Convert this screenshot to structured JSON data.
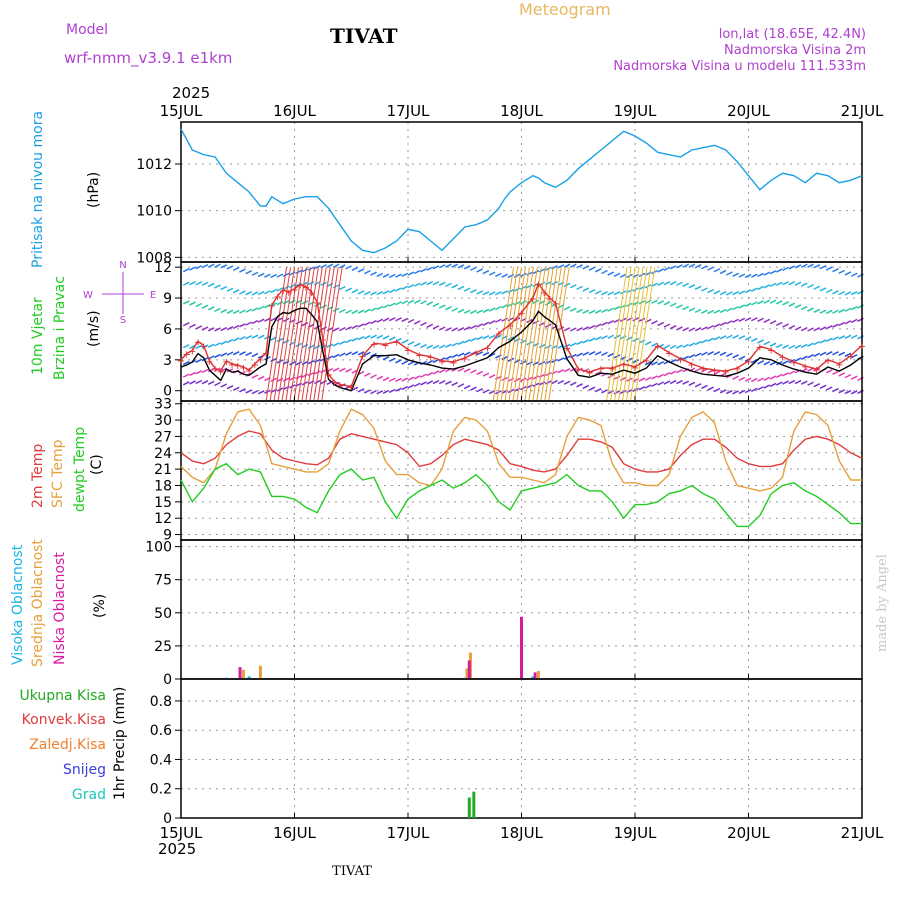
{
  "header": {
    "model_label": "Model",
    "model_name": "wrf-nmm_v3.9.1  e1km",
    "station": "TIVAT",
    "product": "Meteogram",
    "coords": "lon,lat (18.65E, 42.4N)",
    "elevation": "Nadmorska Visina 2m",
    "model_elevation": "Nadmorska Visina u modelu 111.533m",
    "year_top": "2025",
    "year_bottom": "2025",
    "footer_station": "TIVAT",
    "credit": "made by Angel"
  },
  "colors": {
    "pressure": "#1aa0e6",
    "wind_black": "#000000",
    "wind_red": "#e03030",
    "t2m": "#e03c3c",
    "tsfc": "#e6a03c",
    "dewpt": "#22cc22",
    "high_cloud": "#1ab4e6",
    "mid_cloud": "#e6a03c",
    "low_cloud": "#d81aa0",
    "rain_total": "#22aa22",
    "rain_conv": "#e03c3c",
    "freezing": "#f08030",
    "snow": "#3c3ce6",
    "hail": "#1ac8b4",
    "purple_text": "#b040d0",
    "header_orange": "#e8b860"
  },
  "chart_data": [
    {
      "type": "line",
      "panel": "pressure",
      "ylabel_lines": [
        "Pritisak na nivou mora",
        "(hPa)"
      ],
      "yticks": [
        1008,
        1010,
        1012
      ],
      "ylim": [
        1007.8,
        1013.8
      ],
      "xlim": [
        0,
        6
      ],
      "x_ticks": [
        "15JUL",
        "16JUL",
        "17JUL",
        "18JUL",
        "19JUL",
        "20JUL",
        "21JUL"
      ],
      "grid": true,
      "series": [
        {
          "name": "",
          "color_key": "pressure",
          "x": [
            0,
            0.1,
            0.2,
            0.3,
            0.4,
            0.5,
            0.6,
            0.7,
            0.75,
            0.8,
            0.9,
            1.0,
            1.1,
            1.2,
            1.3,
            1.4,
            1.5,
            1.55,
            1.6,
            1.7,
            1.8,
            1.9,
            2.0,
            2.1,
            2.2,
            2.3,
            2.4,
            2.5,
            2.6,
            2.7,
            2.8,
            2.85,
            2.9,
            3.0,
            3.1,
            3.15,
            3.2,
            3.3,
            3.4,
            3.5,
            3.6,
            3.7,
            3.8,
            3.9,
            4.0,
            4.1,
            4.2,
            4.3,
            4.4,
            4.5,
            4.6,
            4.7,
            4.8,
            4.9,
            5.0,
            5.1,
            5.2,
            5.3,
            5.4,
            5.5,
            5.6,
            5.7,
            5.8,
            5.9,
            6.0
          ],
          "y": [
            1013.5,
            1012.6,
            1012.4,
            1012.3,
            1011.6,
            1011.2,
            1010.8,
            1010.2,
            1010.2,
            1010.6,
            1010.3,
            1010.5,
            1010.6,
            1010.6,
            1010.1,
            1009.4,
            1008.7,
            1008.5,
            1008.3,
            1008.2,
            1008.4,
            1008.7,
            1009.2,
            1009.1,
            1008.7,
            1008.3,
            1008.8,
            1009.3,
            1009.4,
            1009.6,
            1010.1,
            1010.5,
            1010.8,
            1011.2,
            1011.5,
            1011.4,
            1011.2,
            1011.0,
            1011.3,
            1011.8,
            1012.2,
            1012.6,
            1013.0,
            1013.4,
            1013.2,
            1012.9,
            1012.5,
            1012.4,
            1012.3,
            1012.6,
            1012.7,
            1012.8,
            1012.6,
            1012.1,
            1011.5,
            1010.9,
            1011.3,
            1011.6,
            1011.5,
            1011.2,
            1011.6,
            1011.5,
            1011.2,
            1011.3,
            1011.5
          ]
        }
      ]
    },
    {
      "type": "line",
      "panel": "wind",
      "ylabel_lines": [
        "10m Vjetar",
        "Brzina i Pravac",
        "(m/s)"
      ],
      "compass": {
        "north": "N",
        "south": "S",
        "west": "W",
        "east": "E"
      },
      "yticks": [
        0,
        3,
        6,
        9,
        12
      ],
      "ylim": [
        -1,
        12.5
      ],
      "xlim": [
        0,
        6
      ],
      "grid": true,
      "series": [
        {
          "name": "",
          "color_key": "wind_black",
          "x": [
            0,
            0.05,
            0.1,
            0.15,
            0.2,
            0.25,
            0.3,
            0.35,
            0.4,
            0.45,
            0.5,
            0.55,
            0.6,
            0.65,
            0.7,
            0.75,
            0.8,
            0.85,
            0.9,
            0.95,
            1.0,
            1.05,
            1.1,
            1.15,
            1.2,
            1.25,
            1.3,
            1.35,
            1.4,
            1.5,
            1.6,
            1.7,
            1.8,
            1.9,
            2.0,
            2.1,
            2.2,
            2.3,
            2.4,
            2.5,
            2.6,
            2.7,
            2.8,
            2.9,
            3.0,
            3.1,
            3.15,
            3.2,
            3.25,
            3.3,
            3.4,
            3.5,
            3.6,
            3.7,
            3.8,
            3.9,
            4.0,
            4.1,
            4.2,
            4.3,
            4.4,
            4.5,
            4.6,
            4.7,
            4.8,
            4.9,
            5.0,
            5.1,
            5.2,
            5.3,
            5.4,
            5.5,
            5.6,
            5.7,
            5.8,
            5.9,
            6.0
          ],
          "y": [
            2.3,
            2.5,
            2.8,
            3.6,
            3.2,
            2.0,
            1.5,
            1.0,
            2.1,
            1.8,
            1.9,
            1.6,
            1.5,
            1.9,
            2.3,
            2.6,
            6.2,
            7.2,
            7.6,
            7.5,
            7.8,
            8.0,
            8.0,
            7.4,
            6.7,
            3.8,
            1.1,
            0.6,
            0.3,
            0.0,
            2.6,
            3.4,
            3.4,
            3.5,
            3.0,
            2.7,
            2.5,
            2.2,
            2.1,
            2.4,
            2.8,
            3.2,
            4.2,
            4.8,
            5.7,
            6.8,
            7.7,
            7.2,
            6.8,
            6.4,
            3.1,
            1.5,
            1.3,
            1.7,
            1.6,
            2.0,
            1.7,
            2.2,
            3.4,
            2.8,
            2.3,
            1.9,
            1.6,
            1.5,
            1.4,
            1.7,
            2.2,
            3.2,
            3.0,
            2.5,
            2.1,
            1.8,
            1.6,
            2.3,
            1.9,
            2.5,
            3.3
          ]
        },
        {
          "name": "",
          "color_key": "wind_red",
          "x": [
            0,
            0.05,
            0.1,
            0.15,
            0.2,
            0.25,
            0.3,
            0.35,
            0.4,
            0.45,
            0.5,
            0.55,
            0.6,
            0.65,
            0.7,
            0.75,
            0.8,
            0.85,
            0.9,
            0.95,
            1.0,
            1.05,
            1.1,
            1.15,
            1.2,
            1.25,
            1.3,
            1.35,
            1.4,
            1.5,
            1.6,
            1.7,
            1.8,
            1.9,
            2.0,
            2.1,
            2.2,
            2.3,
            2.4,
            2.5,
            2.6,
            2.7,
            2.8,
            2.9,
            3.0,
            3.1,
            3.15,
            3.2,
            3.25,
            3.3,
            3.4,
            3.5,
            3.6,
            3.7,
            3.8,
            3.9,
            4.0,
            4.1,
            4.2,
            4.3,
            4.4,
            4.5,
            4.6,
            4.7,
            4.8,
            4.9,
            5.0,
            5.1,
            5.2,
            5.3,
            5.4,
            5.5,
            5.6,
            5.7,
            5.8,
            5.9,
            6.0
          ],
          "y": [
            3.0,
            3.6,
            3.9,
            4.8,
            4.4,
            2.9,
            2.2,
            1.9,
            2.9,
            2.6,
            2.5,
            2.3,
            2.0,
            2.6,
            3.1,
            3.7,
            8.3,
            9.2,
            9.8,
            9.6,
            9.9,
            10.3,
            10.1,
            9.6,
            8.6,
            5.0,
            1.6,
            0.9,
            0.6,
            0.4,
            3.4,
            4.6,
            4.5,
            4.8,
            4.0,
            3.5,
            3.3,
            2.9,
            2.8,
            3.2,
            3.7,
            4.2,
            5.6,
            6.4,
            7.6,
            9.0,
            10.4,
            9.6,
            9.0,
            8.5,
            4.2,
            2.1,
            1.8,
            2.2,
            2.2,
            2.6,
            2.3,
            3.0,
            4.4,
            3.7,
            3.1,
            2.6,
            2.2,
            2.0,
            1.9,
            2.2,
            2.9,
            4.3,
            4.0,
            3.3,
            2.8,
            2.4,
            2.1,
            3.0,
            2.6,
            3.4,
            4.4
          ]
        }
      ]
    },
    {
      "type": "line",
      "panel": "temperature",
      "ylabel_lines": [
        "2m Temp",
        "SFC Temp",
        "dewpt Temp",
        "(C)"
      ],
      "yticks": [
        9,
        12,
        15,
        18,
        21,
        24,
        27,
        30,
        33
      ],
      "ylim": [
        8,
        33.5
      ],
      "xlim": [
        0,
        6
      ],
      "grid": true,
      "series": [
        {
          "name": "2m Temp",
          "color_key": "t2m",
          "x": [
            0,
            0.1,
            0.2,
            0.3,
            0.4,
            0.5,
            0.6,
            0.7,
            0.8,
            0.9,
            1.0,
            1.1,
            1.2,
            1.3,
            1.4,
            1.5,
            1.6,
            1.7,
            1.8,
            1.9,
            2.0,
            2.1,
            2.2,
            2.3,
            2.4,
            2.5,
            2.6,
            2.7,
            2.8,
            2.9,
            3.0,
            3.1,
            3.2,
            3.3,
            3.4,
            3.5,
            3.6,
            3.7,
            3.8,
            3.9,
            4.0,
            4.1,
            4.2,
            4.3,
            4.4,
            4.5,
            4.6,
            4.7,
            4.8,
            4.9,
            5.0,
            5.1,
            5.2,
            5.3,
            5.4,
            5.5,
            5.6,
            5.7,
            5.8,
            5.9,
            6.0
          ],
          "y": [
            24.0,
            22.5,
            22.0,
            23.0,
            25.5,
            27.0,
            28.0,
            27.5,
            24.5,
            23.0,
            22.5,
            22.0,
            21.8,
            23.0,
            26.5,
            27.5,
            27.0,
            26.5,
            26.0,
            25.5,
            24.0,
            21.5,
            22.0,
            23.5,
            25.5,
            26.5,
            26.0,
            25.5,
            24.5,
            22.0,
            21.5,
            20.8,
            20.5,
            21.0,
            23.5,
            26.5,
            26.5,
            26.0,
            25.0,
            22.0,
            21.0,
            20.5,
            20.5,
            21.0,
            23.5,
            25.5,
            26.5,
            26.5,
            25.0,
            23.0,
            22.0,
            21.5,
            21.5,
            22.0,
            24.5,
            26.5,
            27.0,
            26.5,
            25.5,
            24.0,
            23.0
          ]
        },
        {
          "name": "SFC Temp",
          "color_key": "tsfc",
          "x": [
            0,
            0.1,
            0.2,
            0.3,
            0.4,
            0.5,
            0.6,
            0.7,
            0.8,
            0.9,
            1.0,
            1.1,
            1.2,
            1.3,
            1.4,
            1.5,
            1.6,
            1.7,
            1.8,
            1.9,
            2.0,
            2.1,
            2.2,
            2.3,
            2.4,
            2.5,
            2.6,
            2.7,
            2.8,
            2.9,
            3.0,
            3.1,
            3.2,
            3.3,
            3.4,
            3.5,
            3.6,
            3.7,
            3.8,
            3.9,
            4.0,
            4.1,
            4.2,
            4.3,
            4.4,
            4.5,
            4.6,
            4.7,
            4.8,
            4.9,
            5.0,
            5.1,
            5.2,
            5.3,
            5.4,
            5.5,
            5.6,
            5.7,
            5.8,
            5.9,
            6.0
          ],
          "y": [
            21.5,
            19.5,
            18.5,
            21.0,
            27.5,
            31.5,
            32.0,
            29.0,
            22.0,
            21.5,
            21.0,
            20.5,
            20.5,
            22.0,
            28.0,
            32.0,
            31.0,
            28.5,
            22.5,
            20.0,
            20.0,
            18.5,
            18.0,
            21.0,
            28.0,
            30.5,
            30.0,
            28.0,
            22.0,
            19.5,
            19.5,
            19.0,
            18.5,
            20.0,
            27.0,
            30.5,
            30.0,
            29.0,
            22.0,
            18.5,
            18.5,
            18.0,
            18.0,
            20.0,
            27.0,
            30.5,
            31.5,
            29.5,
            22.5,
            18.0,
            17.5,
            17.0,
            17.5,
            19.5,
            28.0,
            31.5,
            31.0,
            29.0,
            22.5,
            19.0,
            19.0
          ]
        },
        {
          "name": "dewpt Temp",
          "color_key": "dewpt",
          "x": [
            0,
            0.1,
            0.2,
            0.3,
            0.4,
            0.5,
            0.6,
            0.7,
            0.8,
            0.9,
            1.0,
            1.1,
            1.2,
            1.3,
            1.4,
            1.5,
            1.6,
            1.7,
            1.8,
            1.9,
            2.0,
            2.1,
            2.2,
            2.3,
            2.4,
            2.5,
            2.6,
            2.7,
            2.8,
            2.9,
            3.0,
            3.1,
            3.2,
            3.3,
            3.4,
            3.5,
            3.6,
            3.7,
            3.8,
            3.9,
            4.0,
            4.1,
            4.2,
            4.3,
            4.4,
            4.5,
            4.6,
            4.7,
            4.8,
            4.9,
            5.0,
            5.1,
            5.2,
            5.3,
            5.4,
            5.5,
            5.6,
            5.7,
            5.8,
            5.9,
            6.0
          ],
          "y": [
            19.0,
            15.0,
            17.5,
            21.0,
            22.0,
            20.0,
            21.0,
            20.5,
            16.0,
            16.0,
            15.5,
            14.0,
            13.0,
            17.0,
            20.0,
            21.0,
            19.0,
            19.5,
            15.0,
            12.0,
            15.5,
            17.0,
            18.0,
            19.0,
            17.5,
            18.5,
            20.0,
            18.0,
            15.0,
            13.5,
            17.0,
            17.5,
            18.0,
            18.5,
            20.0,
            18.0,
            17.0,
            17.0,
            15.0,
            12.0,
            14.5,
            14.5,
            15.0,
            16.5,
            17.0,
            18.0,
            16.5,
            15.5,
            13.0,
            10.5,
            10.5,
            12.5,
            16.5,
            18.0,
            18.5,
            17.0,
            16.0,
            14.5,
            13.0,
            11.0,
            11.0
          ]
        }
      ]
    },
    {
      "type": "bar",
      "panel": "cloud",
      "ylabel_lines": [
        "Visoka Oblacnost",
        "Srednja Oblacnost",
        "Niska Oblacnost",
        "(%)"
      ],
      "yticks": [
        0,
        25,
        50,
        75,
        100
      ],
      "ylim": [
        0,
        105
      ],
      "xlim": [
        0,
        6
      ],
      "grid": true,
      "series": [
        {
          "name": "Visoka Oblacnost",
          "color_key": "high_cloud",
          "x": [
            0.4,
            0.53,
            0.6,
            2.5,
            3.0,
            3.1
          ],
          "values": [
            1,
            1,
            2,
            1,
            1,
            2
          ]
        },
        {
          "name": "Srednja Oblacnost",
          "color_key": "mid_cloud",
          "x": [
            0.55,
            0.7,
            2.52,
            2.55,
            3.15
          ],
          "values": [
            7,
            10,
            8,
            20,
            6
          ]
        },
        {
          "name": "Niska Oblacnost",
          "color_key": "low_cloud",
          "x": [
            0.52,
            2.54,
            3.0,
            3.12
          ],
          "values": [
            9,
            14,
            47,
            5
          ]
        }
      ]
    },
    {
      "type": "bar",
      "panel": "precip",
      "ylabel_lines": [
        "Ukupna Kisa",
        "Konvek.Kisa",
        "Zaledj.Kisa",
        "Snijeg",
        "Grad",
        "1hr Precip (mm)"
      ],
      "yticks": [
        0,
        0.2,
        0.4,
        0.6,
        0.8
      ],
      "ylim": [
        0,
        0.95
      ],
      "xlim": [
        0,
        6
      ],
      "grid": true,
      "series": [
        {
          "name": "Ukupna Kisa",
          "color_key": "rain_total",
          "x": [
            2.54,
            2.58
          ],
          "values": [
            0.14,
            0.18
          ]
        }
      ]
    }
  ]
}
